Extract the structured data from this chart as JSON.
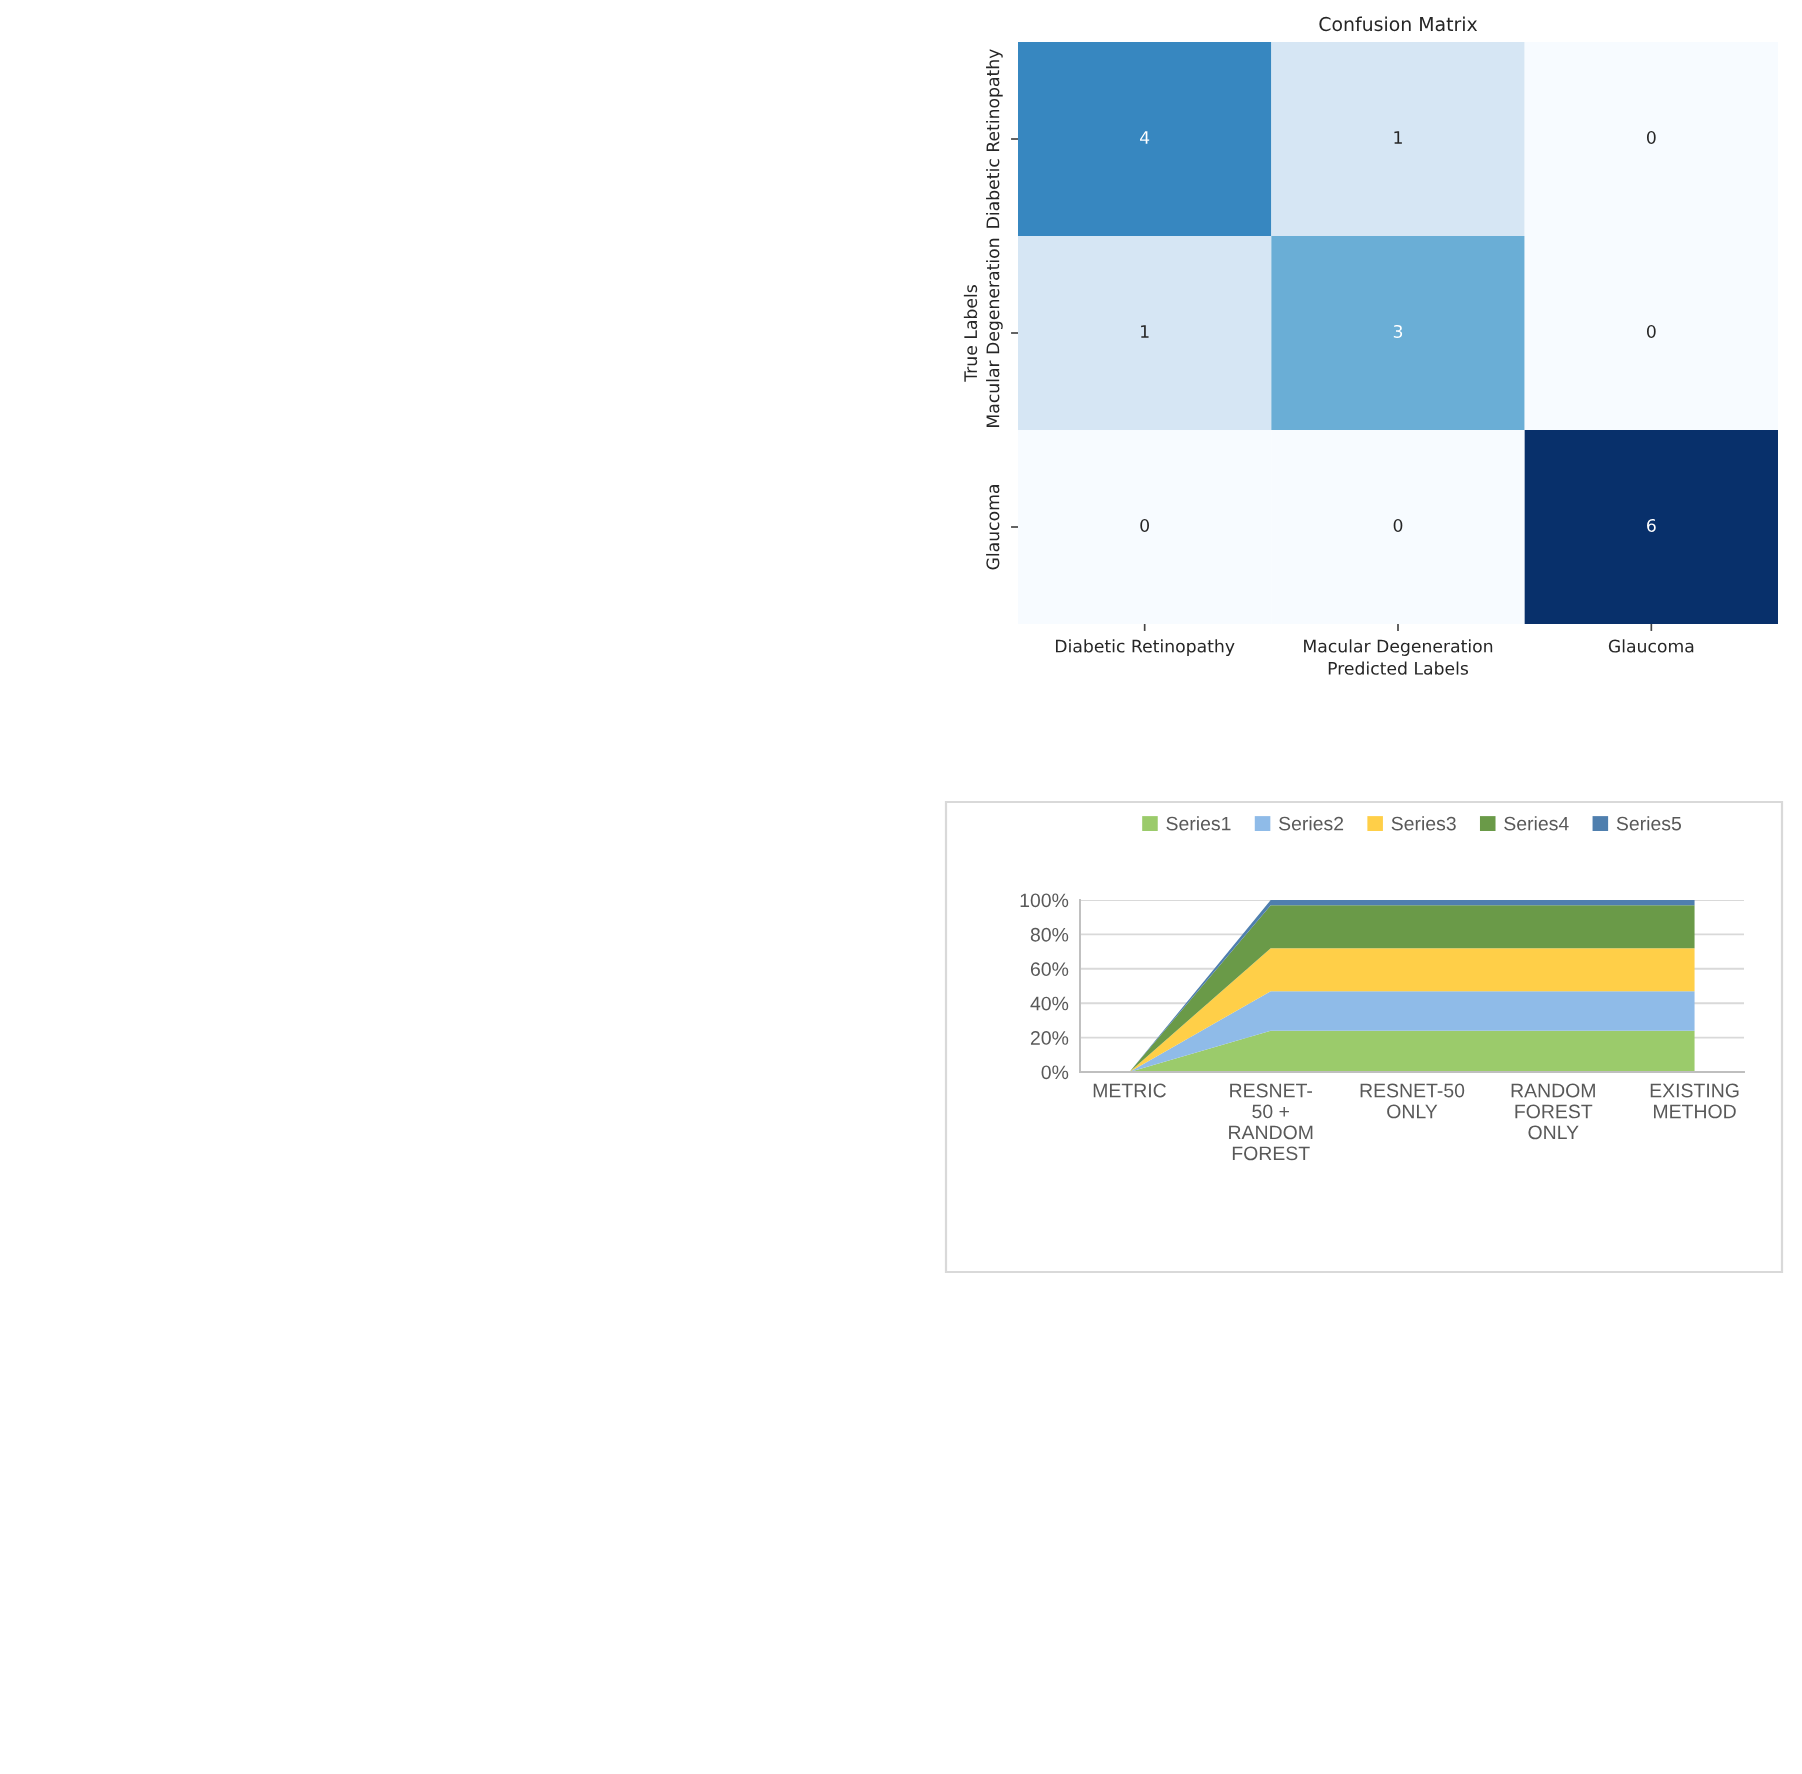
{
  "chart_data": [
    {
      "type": "heatmap",
      "title": "Confusion Matrix",
      "xlabel": "Predicted Labels",
      "ylabel": "True Labels",
      "categories": [
        "Diabetic Retinopathy",
        "Macular Degeneration",
        "Glaucoma"
      ],
      "y_categories": [
        "Diabetic Retinopathy",
        "Macular Degeneration",
        "Glaucoma"
      ],
      "cells": [
        [
          4,
          1,
          0
        ],
        [
          1,
          3,
          0
        ],
        [
          0,
          0,
          6
        ]
      ],
      "data_labels": true
    },
    {
      "type": "area",
      "stacked": true,
      "categories": [
        "METRIC",
        "RESNET-\n50 +\nRANDOM\nFOREST",
        "RESNET-50\nONLY",
        "RANDOM\nFOREST\nONLY",
        "EXISTING\nMETHOD"
      ],
      "series": [
        {
          "name": "Series1",
          "color": "#9bcb6b",
          "values": [
            0,
            24,
            24,
            24,
            24
          ]
        },
        {
          "name": "Series2",
          "color": "#8fbbe8",
          "values": [
            0,
            23,
            23,
            23,
            23
          ]
        },
        {
          "name": "Series3",
          "color": "#ffcf48",
          "values": [
            0,
            25,
            25,
            25,
            25
          ]
        },
        {
          "name": "Series4",
          "color": "#6a9a48",
          "values": [
            0,
            25,
            25,
            25,
            25
          ]
        },
        {
          "name": "Series5",
          "color": "#4f7fae",
          "values": [
            0,
            3,
            3,
            3,
            3
          ]
        }
      ],
      "ylim": [
        0,
        100
      ],
      "yticks": [
        {
          "value": 0,
          "label": "0%"
        },
        {
          "value": 20,
          "label": "20%"
        },
        {
          "value": 40,
          "label": "40%"
        },
        {
          "value": 60,
          "label": "60%"
        },
        {
          "value": 80,
          "label": "80%"
        },
        {
          "value": 100,
          "label": "100%"
        }
      ],
      "grid": "y",
      "legend": "top"
    }
  ]
}
